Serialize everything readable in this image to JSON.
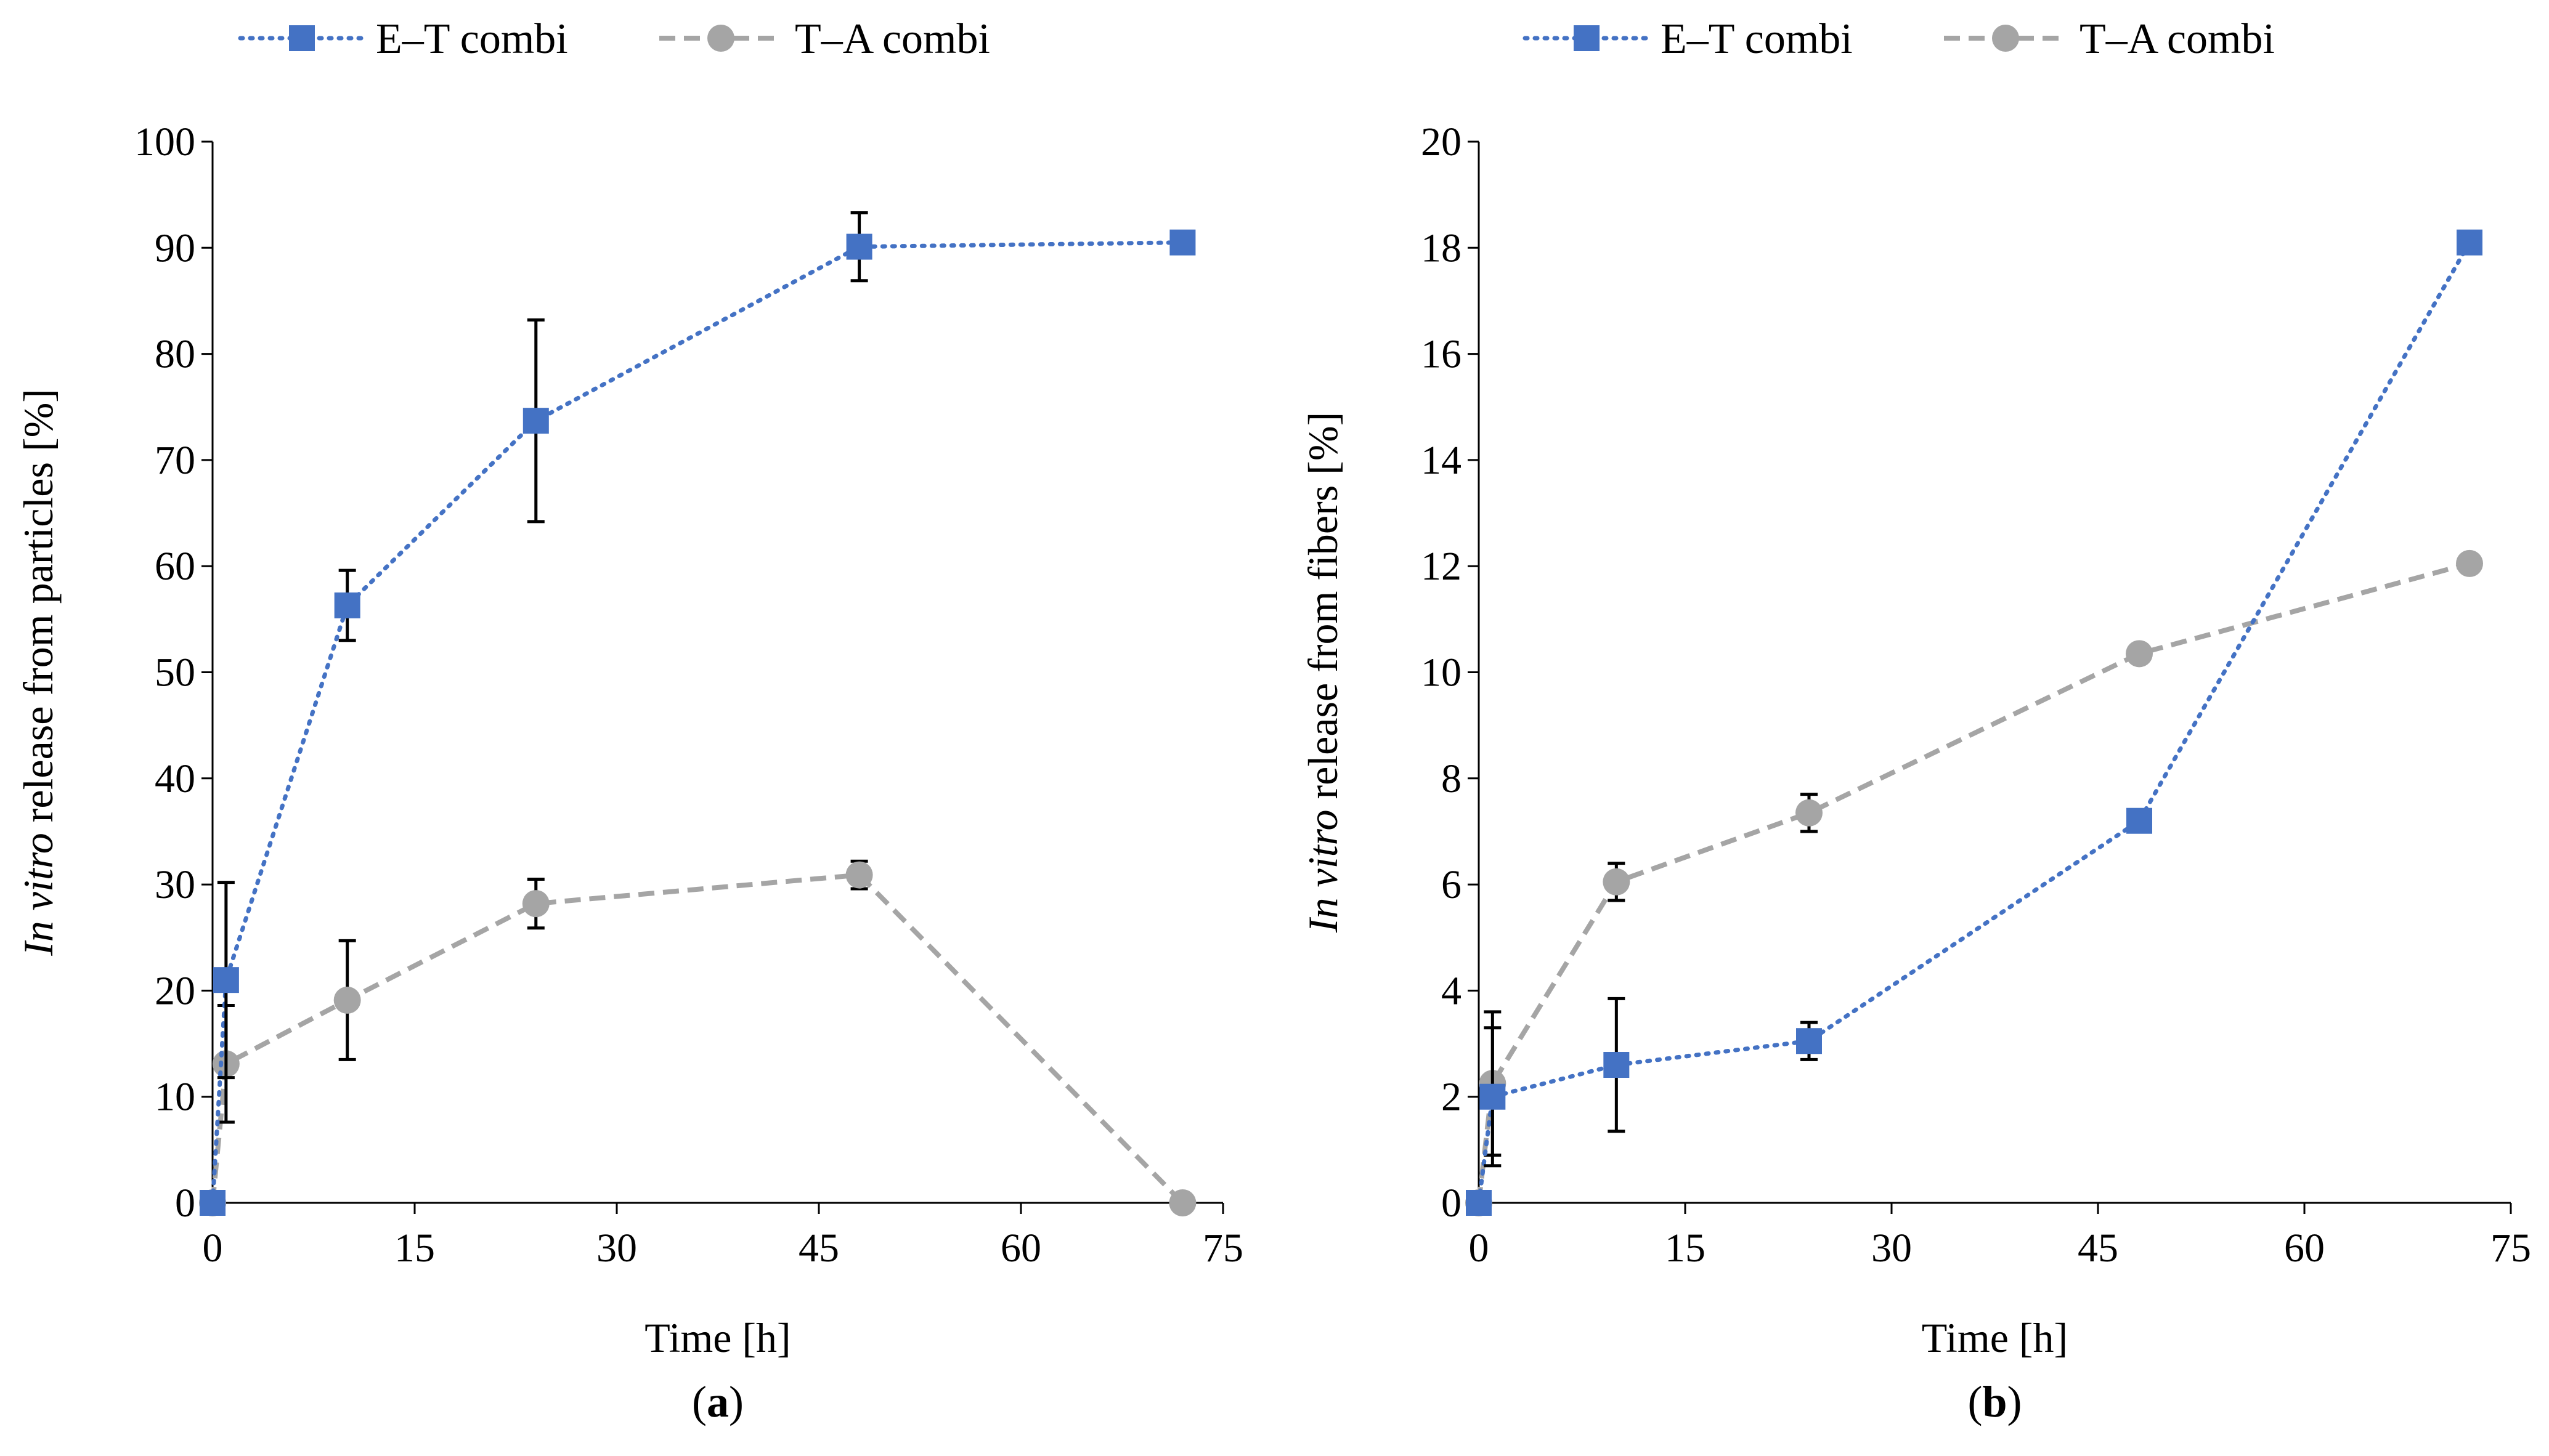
{
  "colors": {
    "et": "#4472C4",
    "ta": "#A5A5A5",
    "axis": "#000000",
    "errorbar": "#000000"
  },
  "chart_data": [
    {
      "id": "a",
      "type": "line",
      "panel_label": {
        "open": "(",
        "letter": "a",
        "close": ")"
      },
      "xlabel": "Time [h]",
      "ylabel_italic": "In vitro",
      "ylabel_rest": " release from particles [%]",
      "xlim": [
        0,
        75
      ],
      "ylim": [
        0,
        100
      ],
      "xticks": [
        0,
        15,
        30,
        45,
        60,
        75
      ],
      "yticks": [
        0,
        10,
        20,
        30,
        40,
        50,
        60,
        70,
        80,
        90,
        100
      ],
      "legend": {
        "position": "top-center"
      },
      "series": [
        {
          "name": "E–T combi",
          "marker": "square",
          "style": "dotted",
          "color": "#4472C4",
          "x": [
            0,
            1,
            10,
            24,
            48,
            72
          ],
          "y": [
            0,
            21,
            56.3,
            73.7,
            90.1,
            90.5
          ],
          "err": [
            0,
            9.2,
            3.3,
            9.5,
            3.2,
            0
          ]
        },
        {
          "name": "T–A combi",
          "marker": "circle",
          "style": "dashed",
          "color": "#A5A5A5",
          "x": [
            0,
            1,
            10,
            24,
            48,
            72
          ],
          "y": [
            0,
            13.1,
            19.1,
            28.2,
            30.9,
            0
          ],
          "err": [
            0,
            5.5,
            5.6,
            2.3,
            1.3,
            0
          ]
        }
      ]
    },
    {
      "id": "b",
      "type": "line",
      "panel_label": {
        "open": "(",
        "letter": "b",
        "close": ")"
      },
      "xlabel": "Time [h]",
      "ylabel_italic": "In vitro",
      "ylabel_rest": " release from fibers [%]",
      "xlim": [
        0,
        75
      ],
      "ylim": [
        0,
        20
      ],
      "xticks": [
        0,
        15,
        30,
        45,
        60,
        75
      ],
      "yticks": [
        0,
        2,
        4,
        6,
        8,
        10,
        12,
        14,
        16,
        18,
        20
      ],
      "legend": {
        "position": "top-center"
      },
      "series": [
        {
          "name": "E–T combi",
          "marker": "square",
          "style": "dotted",
          "color": "#4472C4",
          "x": [
            0,
            1,
            10,
            24,
            48,
            72
          ],
          "y": [
            0,
            2.0,
            2.6,
            3.05,
            7.2,
            18.1
          ],
          "err": [
            0,
            1.3,
            1.25,
            0.35,
            0,
            0
          ]
        },
        {
          "name": "T–A combi",
          "marker": "circle",
          "style": "dashed",
          "color": "#A5A5A5",
          "x": [
            0,
            1,
            10,
            24,
            48,
            72
          ],
          "y": [
            0,
            2.25,
            6.05,
            7.35,
            10.35,
            12.05
          ],
          "err": [
            0,
            1.35,
            0.35,
            0.35,
            0,
            0
          ]
        }
      ]
    }
  ]
}
